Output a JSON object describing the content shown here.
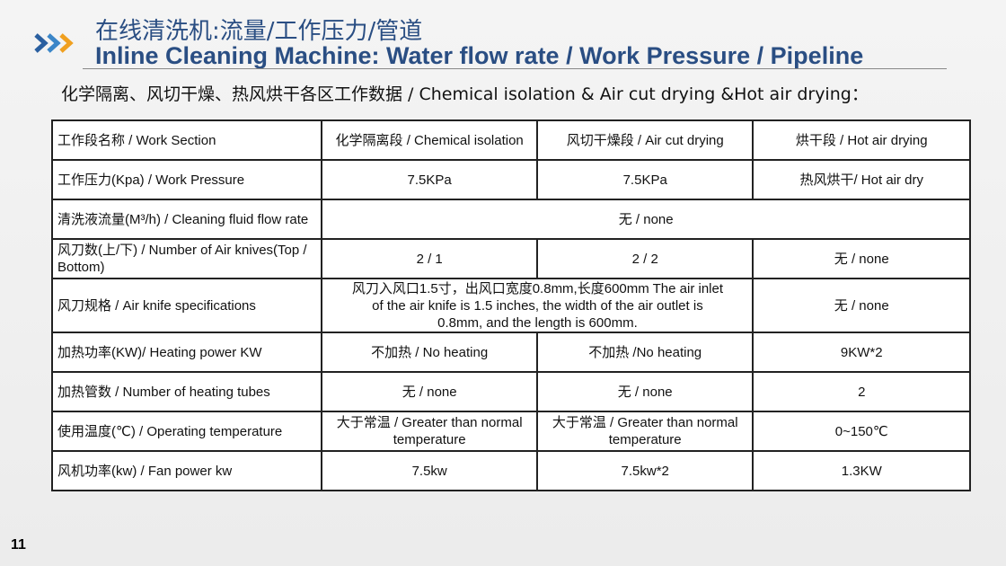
{
  "header": {
    "title_cn": "在线清洗机:流量/工作压力/管道",
    "title_en": "Inline Cleaning Machine: Water flow rate / Work Pressure / Pipeline",
    "subtitle": "化学隔离、风切干燥、热风烘干各区工作数据 / Chemical isolation & Air cut drying &Hot air drying："
  },
  "table": {
    "rows": [
      [
        "工作段名称 / Work Section",
        "化学隔离段 / Chemical isolation",
        "风切干燥段 / Air cut drying",
        "烘干段 / Hot air drying"
      ],
      [
        "工作压力(Kpa) / Work Pressure",
        "7.5KPa",
        "7.5KPa",
        "热风烘干/ Hot air dry"
      ],
      [
        "清洗液流量(M³/h) / Cleaning fluid flow rate",
        "无 / none"
      ],
      [
        "风刀数(上/下) / Number of Air knives(Top / Bottom)",
        "2 / 1",
        "2 / 2",
        "无 / none"
      ],
      [
        "风刀规格 / Air knife specifications",
        "风刀入风口1.5寸，出风口宽度0.8mm,长度600mm The air inlet of the air knife is 1.5 inches, the width of the air outlet is 0.8mm, and the length is 600mm.",
        "无 / none"
      ],
      [
        "加热功率(KW)/ Heating power KW",
        "不加热 / No heating",
        "不加热 /No heating",
        "9KW*2"
      ],
      [
        "加热管数 / Number of heating tubes",
        "无 / none",
        "无 / none",
        "2"
      ],
      [
        "使用温度(℃) / Operating temperature",
        "大于常温 / Greater than normal temperature",
        "大于常温 / Greater than normal temperature",
        "0~150℃"
      ],
      [
        "风机功率(kw) / Fan power kw",
        "7.5kw",
        "7.5kw*2",
        "1.3KW"
      ]
    ]
  },
  "page_number": "11"
}
